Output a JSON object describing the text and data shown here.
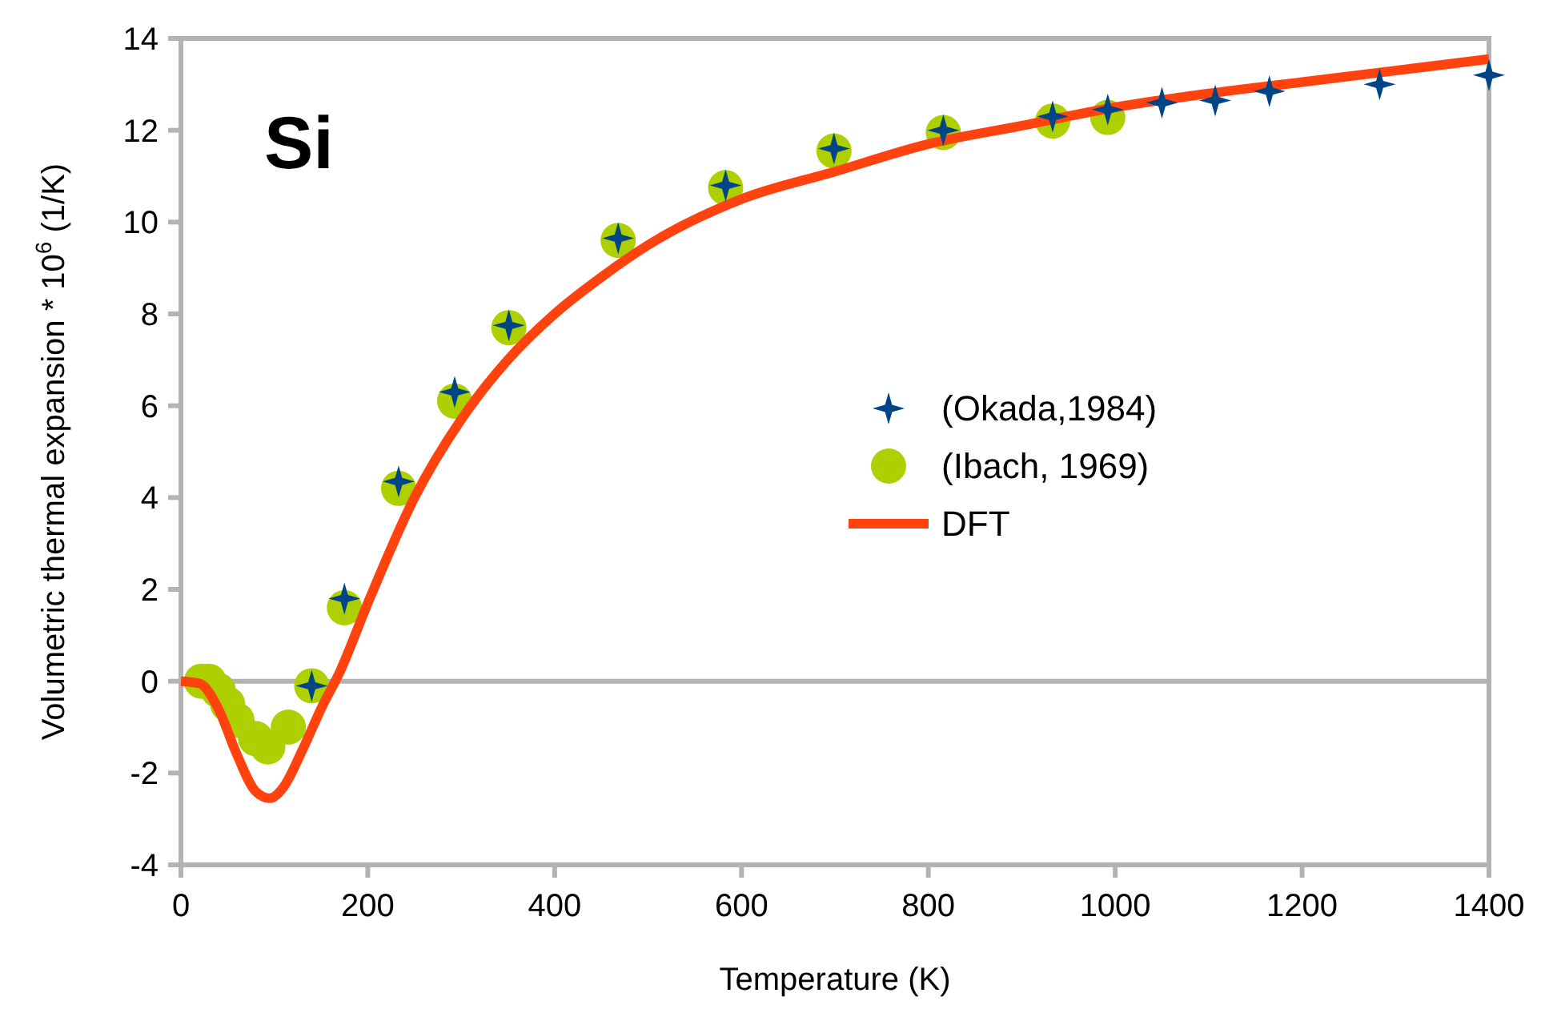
{
  "chart_data": {
    "type": "scatter",
    "xlabel": "Temperature (K)",
    "ylabel": "Volumetric thermal expansion * 10$^{6}$  (1/K)",
    "annotations": [
      "Si"
    ],
    "xlim": [
      0,
      1400
    ],
    "xticks": [
      0,
      200,
      400,
      600,
      800,
      1000,
      1200,
      1400
    ],
    "ylim": [
      -4,
      14
    ],
    "yticks": [
      -4,
      -2,
      0,
      2,
      4,
      6,
      8,
      10,
      12,
      14
    ],
    "grid": false,
    "legend": "right",
    "ref_lines": [
      {
        "axis": "y",
        "value": 0,
        "color": "#b3b3b3"
      }
    ],
    "series": [
      {
        "name": "(Okada,1984)",
        "marker": "star",
        "color": "#004586",
        "x": [
          140,
          175,
          233,
          293,
          351,
          468,
          583,
          699,
          816,
          933,
          992,
          1050,
          1107,
          1165,
          1283,
          1400
        ],
        "values": [
          -0.1,
          1.8,
          4.35,
          6.3,
          7.75,
          9.65,
          10.8,
          11.6,
          12.0,
          12.3,
          12.45,
          12.6,
          12.65,
          12.85,
          13.0,
          13.2
        ]
      },
      {
        "name": "(Ibach, 1969)",
        "marker": "circle",
        "color": "#aecf00",
        "x": [
          22,
          30,
          40,
          50,
          60,
          80,
          93,
          115,
          140,
          175,
          233,
          293,
          351,
          468,
          583,
          699,
          816,
          933,
          992
        ],
        "values": [
          0,
          0,
          -0.2,
          -0.5,
          -0.85,
          -1.25,
          -1.43,
          -1.0,
          -0.1,
          1.6,
          4.2,
          6.1,
          7.7,
          9.6,
          10.75,
          11.55,
          11.95,
          12.2,
          12.28
        ]
      },
      {
        "name": "DFT",
        "type": "line",
        "marker": "none",
        "color": "#ff420e",
        "x": [
          0,
          20,
          40,
          60,
          80,
          95,
          110,
          130,
          150,
          170,
          200,
          250,
          300,
          350,
          400,
          450,
          500,
          600,
          700,
          800,
          900,
          1000,
          1100,
          1200,
          1300,
          1400
        ],
        "values": [
          0,
          -0.05,
          -0.6,
          -1.6,
          -2.4,
          -2.55,
          -2.3,
          -1.5,
          -0.6,
          0.2,
          1.7,
          4.0,
          5.7,
          7.0,
          8.0,
          8.8,
          9.5,
          10.5,
          11.1,
          11.7,
          12.1,
          12.5,
          12.8,
          13.05,
          13.3,
          13.55
        ]
      }
    ]
  }
}
